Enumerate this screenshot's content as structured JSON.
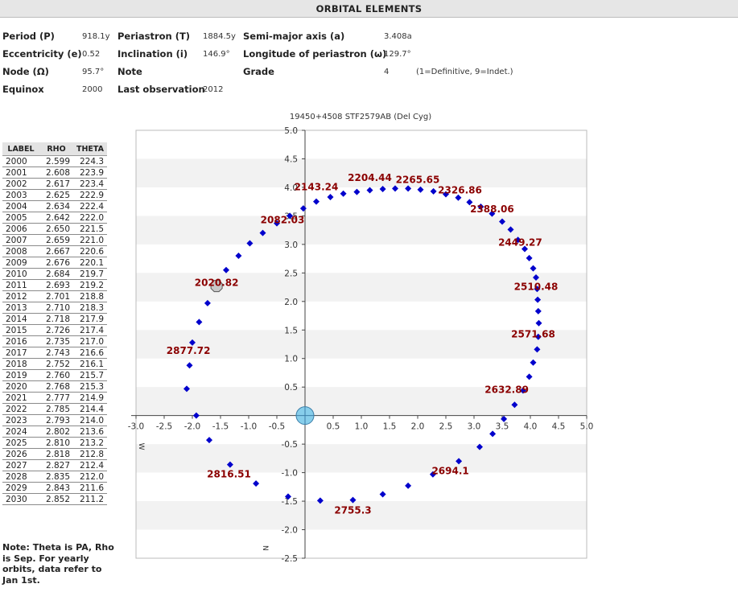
{
  "header": {
    "title": "ORBITAL ELEMENTS"
  },
  "elements": {
    "period": {
      "label": "Period (P)",
      "value": "918.1y"
    },
    "periastron": {
      "label": "Periastron (T)",
      "value": "1884.5y"
    },
    "semimajor": {
      "label": "Semi-major axis (a)",
      "value": "3.408a"
    },
    "eccentricity": {
      "label": "Eccentricity (e)",
      "value": "0.52"
    },
    "inclination": {
      "label": "Inclination (i)",
      "value": "146.9°"
    },
    "longitude": {
      "label": "Longitude of periastron (ω)",
      "value": "129.7°"
    },
    "node": {
      "label": "Node (Ω)",
      "value": "95.7°"
    },
    "note": {
      "label": "Note",
      "value": ""
    },
    "grade": {
      "label": "Grade",
      "value": "4",
      "legend": "(1=Definitive, 9=Indet.)"
    },
    "equinox": {
      "label": "Equinox",
      "value": "2000"
    },
    "last_obs": {
      "label": "Last observation",
      "value": "2012"
    }
  },
  "table": {
    "headers": [
      "LABEL",
      "RHO",
      "THETA"
    ],
    "rows": [
      [
        "2000",
        "2.599",
        "224.3"
      ],
      [
        "2001",
        "2.608",
        "223.9"
      ],
      [
        "2002",
        "2.617",
        "223.4"
      ],
      [
        "2003",
        "2.625",
        "222.9"
      ],
      [
        "2004",
        "2.634",
        "222.4"
      ],
      [
        "2005",
        "2.642",
        "222.0"
      ],
      [
        "2006",
        "2.650",
        "221.5"
      ],
      [
        "2007",
        "2.659",
        "221.0"
      ],
      [
        "2008",
        "2.667",
        "220.6"
      ],
      [
        "2009",
        "2.676",
        "220.1"
      ],
      [
        "2010",
        "2.684",
        "219.7"
      ],
      [
        "2011",
        "2.693",
        "219.2"
      ],
      [
        "2012",
        "2.701",
        "218.8"
      ],
      [
        "2013",
        "2.710",
        "218.3"
      ],
      [
        "2014",
        "2.718",
        "217.9"
      ],
      [
        "2015",
        "2.726",
        "217.4"
      ],
      [
        "2016",
        "2.735",
        "217.0"
      ],
      [
        "2017",
        "2.743",
        "216.6"
      ],
      [
        "2018",
        "2.752",
        "216.1"
      ],
      [
        "2019",
        "2.760",
        "215.7"
      ],
      [
        "2020",
        "2.768",
        "215.3"
      ],
      [
        "2021",
        "2.777",
        "214.9"
      ],
      [
        "2022",
        "2.785",
        "214.4"
      ],
      [
        "2023",
        "2.793",
        "214.0"
      ],
      [
        "2024",
        "2.802",
        "213.6"
      ],
      [
        "2025",
        "2.810",
        "213.2"
      ],
      [
        "2026",
        "2.818",
        "212.8"
      ],
      [
        "2027",
        "2.827",
        "212.4"
      ],
      [
        "2028",
        "2.835",
        "212.0"
      ],
      [
        "2029",
        "2.843",
        "211.6"
      ],
      [
        "2030",
        "2.852",
        "211.2"
      ]
    ]
  },
  "note_text": "Note: Theta is PA, Rho is Sep. For yearly orbits, data refer to Jan 1st.",
  "chart_data": {
    "type": "scatter",
    "title": "19450+4508 STF2579AB (Del Cyg)",
    "xlim": [
      -3.0,
      5.0
    ],
    "ylim": [
      -2.5,
      5.0
    ],
    "xticks": [
      -3.0,
      -2.5,
      -2.0,
      -1.5,
      -1.0,
      -0.5,
      0.5,
      1.0,
      1.5,
      2.0,
      2.5,
      3.0,
      3.5,
      4.0,
      4.5,
      5.0
    ],
    "yticks": [
      5.0,
      4.5,
      4.0,
      3.5,
      3.0,
      2.5,
      2.0,
      1.5,
      1.0,
      0.5,
      -0.5,
      -1.0,
      -1.5,
      -2.0,
      -2.5
    ],
    "xtick_labels": [
      "-3.0",
      "-2.5",
      "-2.0",
      "-1.5",
      "-1.0",
      "-0.5",
      "0.5",
      "1.0",
      "1.5",
      "2.0",
      "2.5",
      "3.0",
      "3.5",
      "4.0",
      "4.5",
      "5.0"
    ],
    "ytick_labels": [
      "5.0",
      "4.5",
      "4.0",
      "3.5",
      "3.0",
      "2.5",
      "2.0",
      "1.5",
      "1.0",
      "0.5",
      "-0.5",
      "-1.0",
      "-1.5",
      "-2.0",
      "-2.5"
    ],
    "axis_x_letter": "W",
    "axis_y_letter": "N",
    "grid": "horizontal bands",
    "colors": {
      "point": "#0000cc",
      "label": "#8b0000",
      "primary": "#87ceeb",
      "current": "#c8c8c8"
    },
    "orbit_points": [
      [
        -2.1,
        0.47
      ],
      [
        -2.05,
        0.88
      ],
      [
        -2.0,
        1.28
      ],
      [
        -1.88,
        1.64
      ],
      [
        -1.73,
        1.97
      ],
      [
        -1.4,
        2.55
      ],
      [
        -1.18,
        2.8
      ],
      [
        -0.98,
        3.02
      ],
      [
        -0.75,
        3.2
      ],
      [
        -0.5,
        3.37
      ],
      [
        -0.27,
        3.5
      ],
      [
        -0.03,
        3.63
      ],
      [
        0.2,
        3.75
      ],
      [
        0.45,
        3.83
      ],
      [
        0.68,
        3.89
      ],
      [
        0.92,
        3.92
      ],
      [
        1.15,
        3.95
      ],
      [
        1.38,
        3.97
      ],
      [
        1.6,
        3.98
      ],
      [
        1.83,
        3.98
      ],
      [
        2.05,
        3.96
      ],
      [
        2.28,
        3.93
      ],
      [
        2.5,
        3.88
      ],
      [
        2.72,
        3.82
      ],
      [
        2.92,
        3.74
      ],
      [
        3.12,
        3.66
      ],
      [
        3.32,
        3.54
      ],
      [
        3.5,
        3.4
      ],
      [
        3.65,
        3.26
      ],
      [
        3.78,
        3.08
      ],
      [
        3.9,
        2.92
      ],
      [
        3.98,
        2.76
      ],
      [
        4.05,
        2.58
      ],
      [
        4.1,
        2.42
      ],
      [
        4.12,
        2.22
      ],
      [
        4.13,
        2.03
      ],
      [
        4.14,
        1.83
      ],
      [
        4.15,
        1.62
      ],
      [
        4.14,
        1.38
      ],
      [
        4.12,
        1.16
      ],
      [
        4.05,
        0.93
      ],
      [
        3.98,
        0.68
      ],
      [
        3.87,
        0.44
      ],
      [
        3.72,
        0.19
      ],
      [
        3.53,
        -0.06
      ],
      [
        3.33,
        -0.32
      ],
      [
        3.1,
        -0.55
      ],
      [
        2.73,
        -0.8
      ],
      [
        2.27,
        -1.03
      ],
      [
        1.83,
        -1.23
      ],
      [
        1.38,
        -1.38
      ],
      [
        0.85,
        -1.48
      ],
      [
        0.27,
        -1.49
      ],
      [
        -0.3,
        -1.42
      ],
      [
        -0.87,
        -1.19
      ],
      [
        -1.33,
        -0.86
      ],
      [
        -1.7,
        -0.43
      ],
      [
        -1.93,
        0.0
      ]
    ],
    "labeled_points": [
      {
        "label": "2020.82",
        "x": -1.57,
        "y": 2.27
      },
      {
        "label": "2082.03",
        "x": -0.4,
        "y": 3.37
      },
      {
        "label": "2143.24",
        "x": 0.2,
        "y": 3.95
      },
      {
        "label": "2204.44",
        "x": 1.15,
        "y": 4.11
      },
      {
        "label": "2265.65",
        "x": 2.0,
        "y": 4.08
      },
      {
        "label": "2326.86",
        "x": 2.75,
        "y": 3.89
      },
      {
        "label": "2388.06",
        "x": 3.32,
        "y": 3.56
      },
      {
        "label": "2449.27",
        "x": 3.82,
        "y": 2.98
      },
      {
        "label": "2510.48",
        "x": 4.1,
        "y": 2.2
      },
      {
        "label": "2571.68",
        "x": 4.05,
        "y": 1.37
      },
      {
        "label": "2632.89",
        "x": 3.58,
        "y": 0.4
      },
      {
        "label": "2694.1",
        "x": 2.58,
        "y": -1.03
      },
      {
        "label": "2755.3",
        "x": 0.85,
        "y": -1.72
      },
      {
        "label": "2816.51",
        "x": -1.35,
        "y": -1.08
      },
      {
        "label": "2877.72",
        "x": -2.07,
        "y": 1.08
      }
    ],
    "current_position": {
      "x": -1.57,
      "y": 2.27
    },
    "primary_star": {
      "x": 0.0,
      "y": 0.0
    }
  }
}
